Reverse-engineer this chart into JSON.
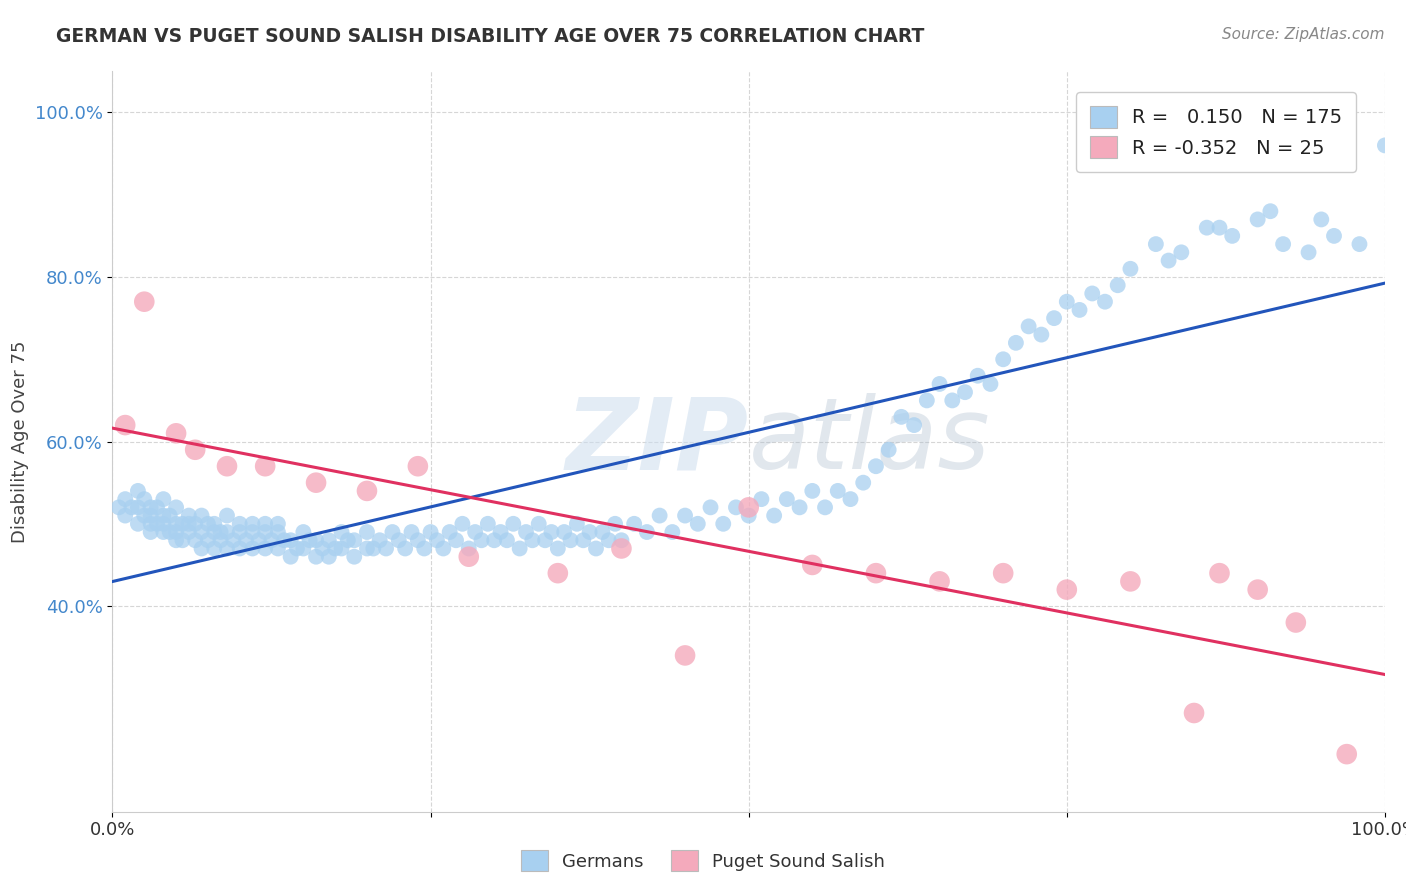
{
  "title": "GERMAN VS PUGET SOUND SALISH DISABILITY AGE OVER 75 CORRELATION CHART",
  "source": "Source: ZipAtlas.com",
  "ylabel": "Disability Age Over 75",
  "xlim": [
    0.0,
    1.0
  ],
  "ylim": [
    0.15,
    1.05
  ],
  "y_ticks": [
    0.4,
    0.6,
    0.8,
    1.0
  ],
  "y_tick_labels": [
    "40.0%",
    "60.0%",
    "80.0%",
    "100.0%"
  ],
  "watermark_zip": "ZIP",
  "watermark_atlas": "atlas",
  "blue_color": "#A8D0F0",
  "pink_color": "#F4AABC",
  "blue_line_color": "#2255BB",
  "pink_line_color": "#E03060",
  "legend_blue_label": "Germans",
  "legend_pink_label": "Puget Sound Salish",
  "r_blue": 0.15,
  "n_blue": 175,
  "r_pink": -0.352,
  "n_pink": 25,
  "blue_x": [
    0.005,
    0.01,
    0.01,
    0.015,
    0.02,
    0.02,
    0.02,
    0.025,
    0.025,
    0.03,
    0.03,
    0.03,
    0.03,
    0.035,
    0.035,
    0.04,
    0.04,
    0.04,
    0.04,
    0.045,
    0.045,
    0.05,
    0.05,
    0.05,
    0.05,
    0.055,
    0.055,
    0.06,
    0.06,
    0.06,
    0.065,
    0.065,
    0.07,
    0.07,
    0.07,
    0.075,
    0.075,
    0.08,
    0.08,
    0.08,
    0.085,
    0.085,
    0.09,
    0.09,
    0.09,
    0.095,
    0.1,
    0.1,
    0.1,
    0.105,
    0.11,
    0.11,
    0.11,
    0.115,
    0.12,
    0.12,
    0.12,
    0.125,
    0.13,
    0.13,
    0.13,
    0.135,
    0.14,
    0.14,
    0.145,
    0.15,
    0.15,
    0.155,
    0.16,
    0.16,
    0.165,
    0.17,
    0.17,
    0.175,
    0.18,
    0.18,
    0.185,
    0.19,
    0.19,
    0.2,
    0.2,
    0.205,
    0.21,
    0.215,
    0.22,
    0.225,
    0.23,
    0.235,
    0.24,
    0.245,
    0.25,
    0.255,
    0.26,
    0.265,
    0.27,
    0.275,
    0.28,
    0.285,
    0.29,
    0.295,
    0.3,
    0.305,
    0.31,
    0.315,
    0.32,
    0.325,
    0.33,
    0.335,
    0.34,
    0.345,
    0.35,
    0.355,
    0.36,
    0.365,
    0.37,
    0.375,
    0.38,
    0.385,
    0.39,
    0.395,
    0.4,
    0.41,
    0.42,
    0.43,
    0.44,
    0.45,
    0.46,
    0.47,
    0.48,
    0.49,
    0.5,
    0.51,
    0.52,
    0.53,
    0.54,
    0.55,
    0.56,
    0.57,
    0.58,
    0.59,
    0.6,
    0.61,
    0.62,
    0.63,
    0.64,
    0.65,
    0.66,
    0.67,
    0.68,
    0.69,
    0.7,
    0.71,
    0.72,
    0.73,
    0.74,
    0.75,
    0.76,
    0.77,
    0.78,
    0.79,
    0.8,
    0.82,
    0.84,
    0.86,
    0.88,
    0.9,
    0.92,
    0.94,
    0.96,
    0.98,
    1.0,
    0.83,
    0.87,
    0.91,
    0.95
  ],
  "blue_y": [
    0.52,
    0.51,
    0.53,
    0.52,
    0.5,
    0.52,
    0.54,
    0.51,
    0.53,
    0.5,
    0.52,
    0.49,
    0.51,
    0.52,
    0.5,
    0.49,
    0.51,
    0.53,
    0.5,
    0.51,
    0.49,
    0.48,
    0.5,
    0.52,
    0.49,
    0.5,
    0.48,
    0.49,
    0.51,
    0.5,
    0.48,
    0.5,
    0.47,
    0.49,
    0.51,
    0.48,
    0.5,
    0.49,
    0.47,
    0.5,
    0.48,
    0.49,
    0.47,
    0.49,
    0.51,
    0.48,
    0.47,
    0.49,
    0.5,
    0.48,
    0.47,
    0.49,
    0.5,
    0.48,
    0.47,
    0.49,
    0.5,
    0.48,
    0.47,
    0.49,
    0.5,
    0.48,
    0.46,
    0.48,
    0.47,
    0.49,
    0.47,
    0.48,
    0.46,
    0.48,
    0.47,
    0.46,
    0.48,
    0.47,
    0.49,
    0.47,
    0.48,
    0.46,
    0.48,
    0.47,
    0.49,
    0.47,
    0.48,
    0.47,
    0.49,
    0.48,
    0.47,
    0.49,
    0.48,
    0.47,
    0.49,
    0.48,
    0.47,
    0.49,
    0.48,
    0.5,
    0.47,
    0.49,
    0.48,
    0.5,
    0.48,
    0.49,
    0.48,
    0.5,
    0.47,
    0.49,
    0.48,
    0.5,
    0.48,
    0.49,
    0.47,
    0.49,
    0.48,
    0.5,
    0.48,
    0.49,
    0.47,
    0.49,
    0.48,
    0.5,
    0.48,
    0.5,
    0.49,
    0.51,
    0.49,
    0.51,
    0.5,
    0.52,
    0.5,
    0.52,
    0.51,
    0.53,
    0.51,
    0.53,
    0.52,
    0.54,
    0.52,
    0.54,
    0.53,
    0.55,
    0.57,
    0.59,
    0.63,
    0.62,
    0.65,
    0.67,
    0.65,
    0.66,
    0.68,
    0.67,
    0.7,
    0.72,
    0.74,
    0.73,
    0.75,
    0.77,
    0.76,
    0.78,
    0.77,
    0.79,
    0.81,
    0.84,
    0.83,
    0.86,
    0.85,
    0.87,
    0.84,
    0.83,
    0.85,
    0.84,
    0.96,
    0.82,
    0.86,
    0.88,
    0.87
  ],
  "pink_x": [
    0.01,
    0.025,
    0.05,
    0.065,
    0.09,
    0.12,
    0.16,
    0.2,
    0.24,
    0.28,
    0.35,
    0.4,
    0.45,
    0.5,
    0.55,
    0.6,
    0.65,
    0.7,
    0.75,
    0.8,
    0.85,
    0.87,
    0.9,
    0.93,
    0.97
  ],
  "pink_y": [
    0.62,
    0.77,
    0.61,
    0.59,
    0.57,
    0.57,
    0.55,
    0.54,
    0.57,
    0.46,
    0.44,
    0.47,
    0.34,
    0.52,
    0.45,
    0.44,
    0.43,
    0.44,
    0.42,
    0.43,
    0.27,
    0.44,
    0.42,
    0.38,
    0.22
  ]
}
